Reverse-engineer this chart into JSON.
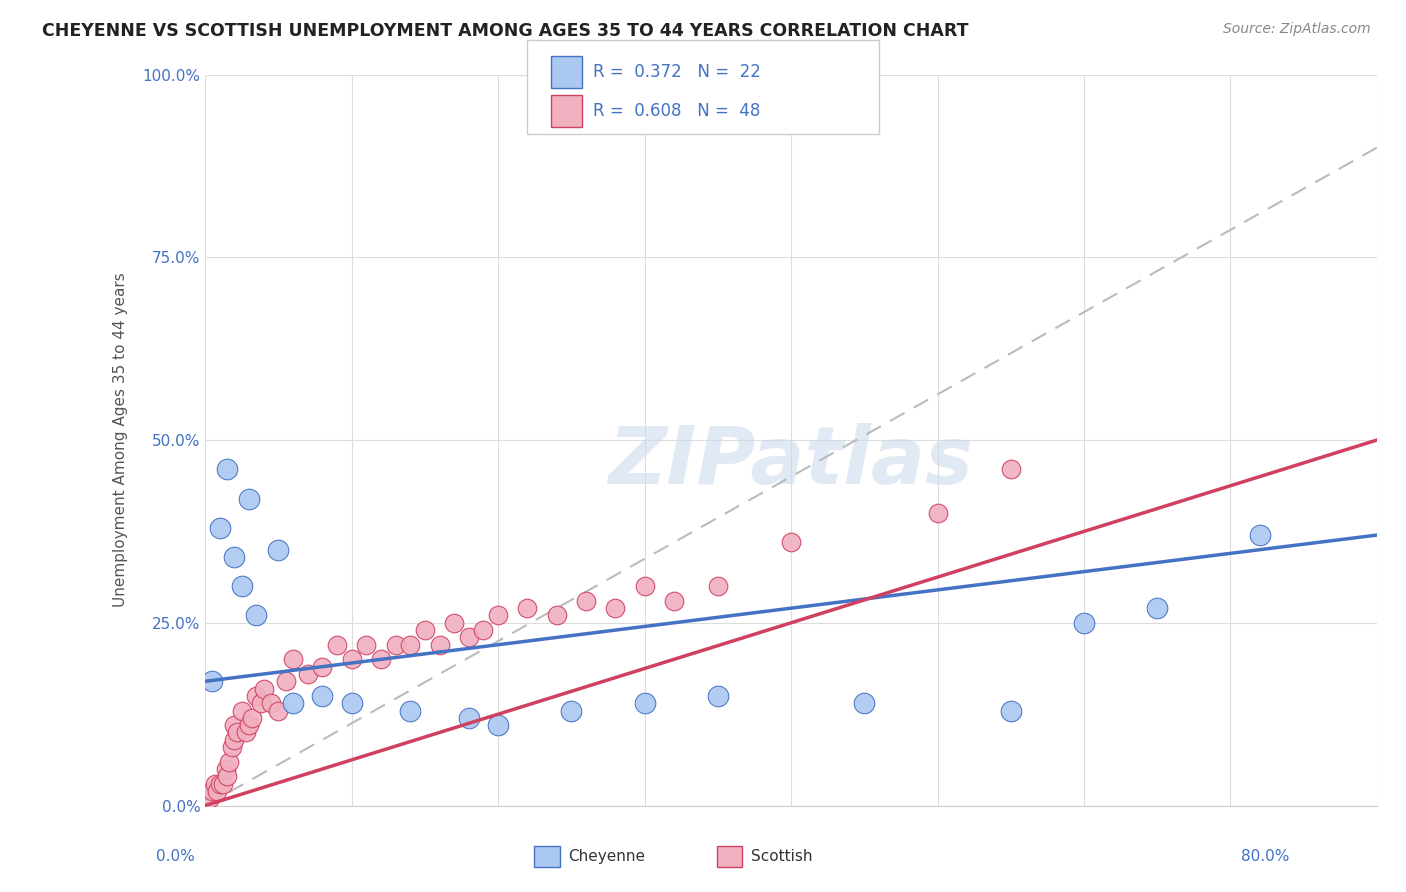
{
  "title": "CHEYENNE VS SCOTTISH UNEMPLOYMENT AMONG AGES 35 TO 44 YEARS CORRELATION CHART",
  "source": "Source: ZipAtlas.com",
  "ylabel": "Unemployment Among Ages 35 to 44 years",
  "xlim": [
    0.0,
    80.0
  ],
  "ylim": [
    0.0,
    100.0
  ],
  "ytick_values": [
    0,
    25,
    50,
    75,
    100
  ],
  "xtick_values": [
    0,
    10,
    20,
    30,
    40,
    50,
    60,
    70,
    80
  ],
  "cheyenne_R": 0.372,
  "cheyenne_N": 22,
  "scottish_R": 0.608,
  "scottish_N": 48,
  "cheyenne_color": "#aac8f0",
  "cheyenne_line_color": "#4472c4",
  "scottish_color": "#f0b0c0",
  "scottish_line_color": "#d04060",
  "watermark": "ZIPatlas",
  "cheyenne_x": [
    0.5,
    1.0,
    2.0,
    2.5,
    3.5,
    5.0,
    10.0,
    14.0,
    18.0,
    20.0,
    30.0,
    35.0,
    55.0,
    60.0,
    65.0,
    72.0,
    1.5,
    3.0,
    6.0,
    8.0,
    25.0,
    45.0
  ],
  "cheyenne_y": [
    17.0,
    38.0,
    34.0,
    30.0,
    26.0,
    35.0,
    14.0,
    13.0,
    12.0,
    11.0,
    14.0,
    15.0,
    13.0,
    25.0,
    27.0,
    37.0,
    46.0,
    42.0,
    14.0,
    15.0,
    13.0,
    14.0
  ],
  "scottish_x": [
    0.3,
    0.5,
    0.7,
    0.8,
    1.0,
    1.2,
    1.4,
    1.5,
    1.6,
    1.8,
    2.0,
    2.0,
    2.2,
    2.5,
    2.8,
    3.0,
    3.2,
    3.5,
    3.8,
    4.0,
    4.5,
    5.0,
    5.5,
    6.0,
    7.0,
    8.0,
    9.0,
    10.0,
    11.0,
    12.0,
    13.0,
    14.0,
    15.0,
    16.0,
    17.0,
    18.0,
    19.0,
    20.0,
    22.0,
    24.0,
    26.0,
    28.0,
    30.0,
    32.0,
    35.0,
    40.0,
    50.0,
    55.0
  ],
  "scottish_y": [
    1.0,
    2.0,
    3.0,
    2.0,
    3.0,
    3.0,
    5.0,
    4.0,
    6.0,
    8.0,
    9.0,
    11.0,
    10.0,
    13.0,
    10.0,
    11.0,
    12.0,
    15.0,
    14.0,
    16.0,
    14.0,
    13.0,
    17.0,
    20.0,
    18.0,
    19.0,
    22.0,
    20.0,
    22.0,
    20.0,
    22.0,
    22.0,
    24.0,
    22.0,
    25.0,
    23.0,
    24.0,
    26.0,
    27.0,
    26.0,
    28.0,
    27.0,
    30.0,
    28.0,
    30.0,
    36.0,
    40.0,
    46.0
  ],
  "cheyenne_trend": [
    17.0,
    37.0
  ],
  "scottish_trend": [
    0.0,
    50.0
  ],
  "ref_line_x": [
    0,
    80
  ],
  "ref_line_y": [
    0,
    90
  ]
}
